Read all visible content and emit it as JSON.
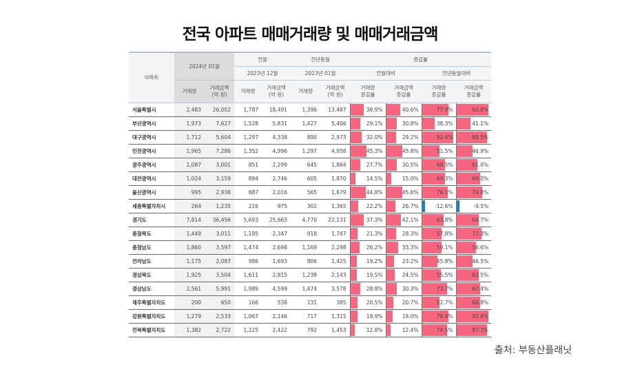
{
  "title": "전국 아파트 매매거래량 및 매매거래금액",
  "source": "출처: 부동산플래닛",
  "colors": {
    "positive_bar": "#f7667e",
    "negative_bar": "#1a7fd0"
  },
  "header": {
    "region": "아파트",
    "current": "2024년 01월",
    "prev_month": "전월",
    "prev_month_date": "2023년 12월",
    "prev_year": "전년동월",
    "prev_year_date": "2023년 01월",
    "change": "증감률",
    "vs_month": "전월대비",
    "vs_year": "전년동월대비",
    "volume": "거래량",
    "amount": "거래금액\n(억 원)",
    "volume_change": "거래량\n증감률",
    "amount_change": "거래금액\n증감률"
  },
  "rows": [
    {
      "name": "서울특별시",
      "v": "2,483",
      "a": "26,002",
      "pv": "1,787",
      "pa": "18,491",
      "yv": "1,396",
      "ya": "13,487",
      "c": [
        38.9,
        40.6,
        77.9,
        92.8
      ]
    },
    {
      "name": "부산광역시",
      "v": "1,973",
      "a": "7,627",
      "pv": "1,528",
      "pa": "5,831",
      "yv": "1,427",
      "ya": "5,406",
      "c": [
        29.1,
        30.8,
        38.3,
        41.1
      ]
    },
    {
      "name": "대구광역시",
      "v": "1,712",
      "a": "5,604",
      "pv": "1,297",
      "pa": "4,338",
      "yv": "890",
      "ya": "2,973",
      "c": [
        32.0,
        29.2,
        92.4,
        88.5
      ]
    },
    {
      "name": "인천광역시",
      "v": "1,965",
      "a": "7,286",
      "pv": "1,352",
      "pa": "4,996",
      "yv": "1,297",
      "ya": "4,958",
      "c": [
        45.3,
        45.8,
        51.5,
        46.9
      ]
    },
    {
      "name": "광주광역시",
      "v": "1,087",
      "a": "3,001",
      "pv": "851",
      "pa": "2,299",
      "yv": "645",
      "ya": "1,864",
      "c": [
        27.7,
        30.5,
        68.5,
        61.0
      ]
    },
    {
      "name": "대전광역시",
      "v": "1,024",
      "a": "3,159",
      "pv": "894",
      "pa": "2,746",
      "yv": "605",
      "ya": "1,870",
      "c": [
        14.5,
        15.0,
        69.3,
        69.0
      ]
    },
    {
      "name": "울산광역시",
      "v": "995",
      "a": "2,936",
      "pv": "687",
      "pa": "2,016",
      "yv": "565",
      "ya": "1,679",
      "c": [
        44.8,
        45.6,
        76.1,
        74.8
      ]
    },
    {
      "name": "세종특별자치시",
      "v": "264",
      "a": "1,235",
      "pv": "216",
      "pa": "975",
      "yv": "302",
      "ya": "1,365",
      "c": [
        22.2,
        26.7,
        -12.6,
        -9.5
      ]
    },
    {
      "name": "경기도",
      "v": "7,814",
      "a": "36,456",
      "pv": "5,693",
      "pa": "25,663",
      "yv": "4,770",
      "ya": "22,131",
      "c": [
        37.3,
        42.1,
        63.8,
        64.7
      ]
    },
    {
      "name": "충청북도",
      "v": "1,449",
      "a": "3,011",
      "pv": "1,195",
      "pa": "2,347",
      "yv": "918",
      "ya": "1,747",
      "c": [
        21.3,
        28.3,
        57.8,
        72.3
      ]
    },
    {
      "name": "충청남도",
      "v": "1,860",
      "a": "3,597",
      "pv": "1,474",
      "pa": "2,698",
      "yv": "1,169",
      "ya": "2,298",
      "c": [
        26.2,
        33.3,
        59.1,
        56.6
      ]
    },
    {
      "name": "전라남도",
      "v": "1,175",
      "a": "2,087",
      "pv": "986",
      "pa": "1,693",
      "yv": "806",
      "ya": "1,425",
      "c": [
        19.2,
        23.2,
        45.8,
        46.5
      ]
    },
    {
      "name": "경상북도",
      "v": "1,925",
      "a": "3,504",
      "pv": "1,611",
      "pa": "2,815",
      "yv": "1,238",
      "ya": "2,143",
      "c": [
        19.5,
        24.5,
        55.5,
        63.5
      ]
    },
    {
      "name": "경상남도",
      "v": "2,561",
      "a": "5,991",
      "pv": "1,989",
      "pa": "4,599",
      "yv": "1,474",
      "ya": "3,578",
      "c": [
        28.8,
        30.3,
        73.7,
        67.4
      ]
    },
    {
      "name": "제주특별자치도",
      "v": "200",
      "a": "650",
      "pv": "166",
      "pa": "538",
      "yv": "131",
      "ya": "385",
      "c": [
        20.5,
        20.7,
        52.7,
        68.8
      ]
    },
    {
      "name": "강원특별자치도",
      "v": "1,279",
      "a": "2,533",
      "pv": "1,067",
      "pa": "2,146",
      "yv": "717",
      "ya": "1,315",
      "c": [
        19.9,
        18.0,
        78.4,
        92.6
      ]
    },
    {
      "name": "전북특별자치도",
      "v": "1,382",
      "a": "2,722",
      "pv": "1,225",
      "pa": "2,422",
      "yv": "792",
      "ya": "1,453",
      "c": [
        12.8,
        12.4,
        74.5,
        87.3
      ]
    }
  ]
}
